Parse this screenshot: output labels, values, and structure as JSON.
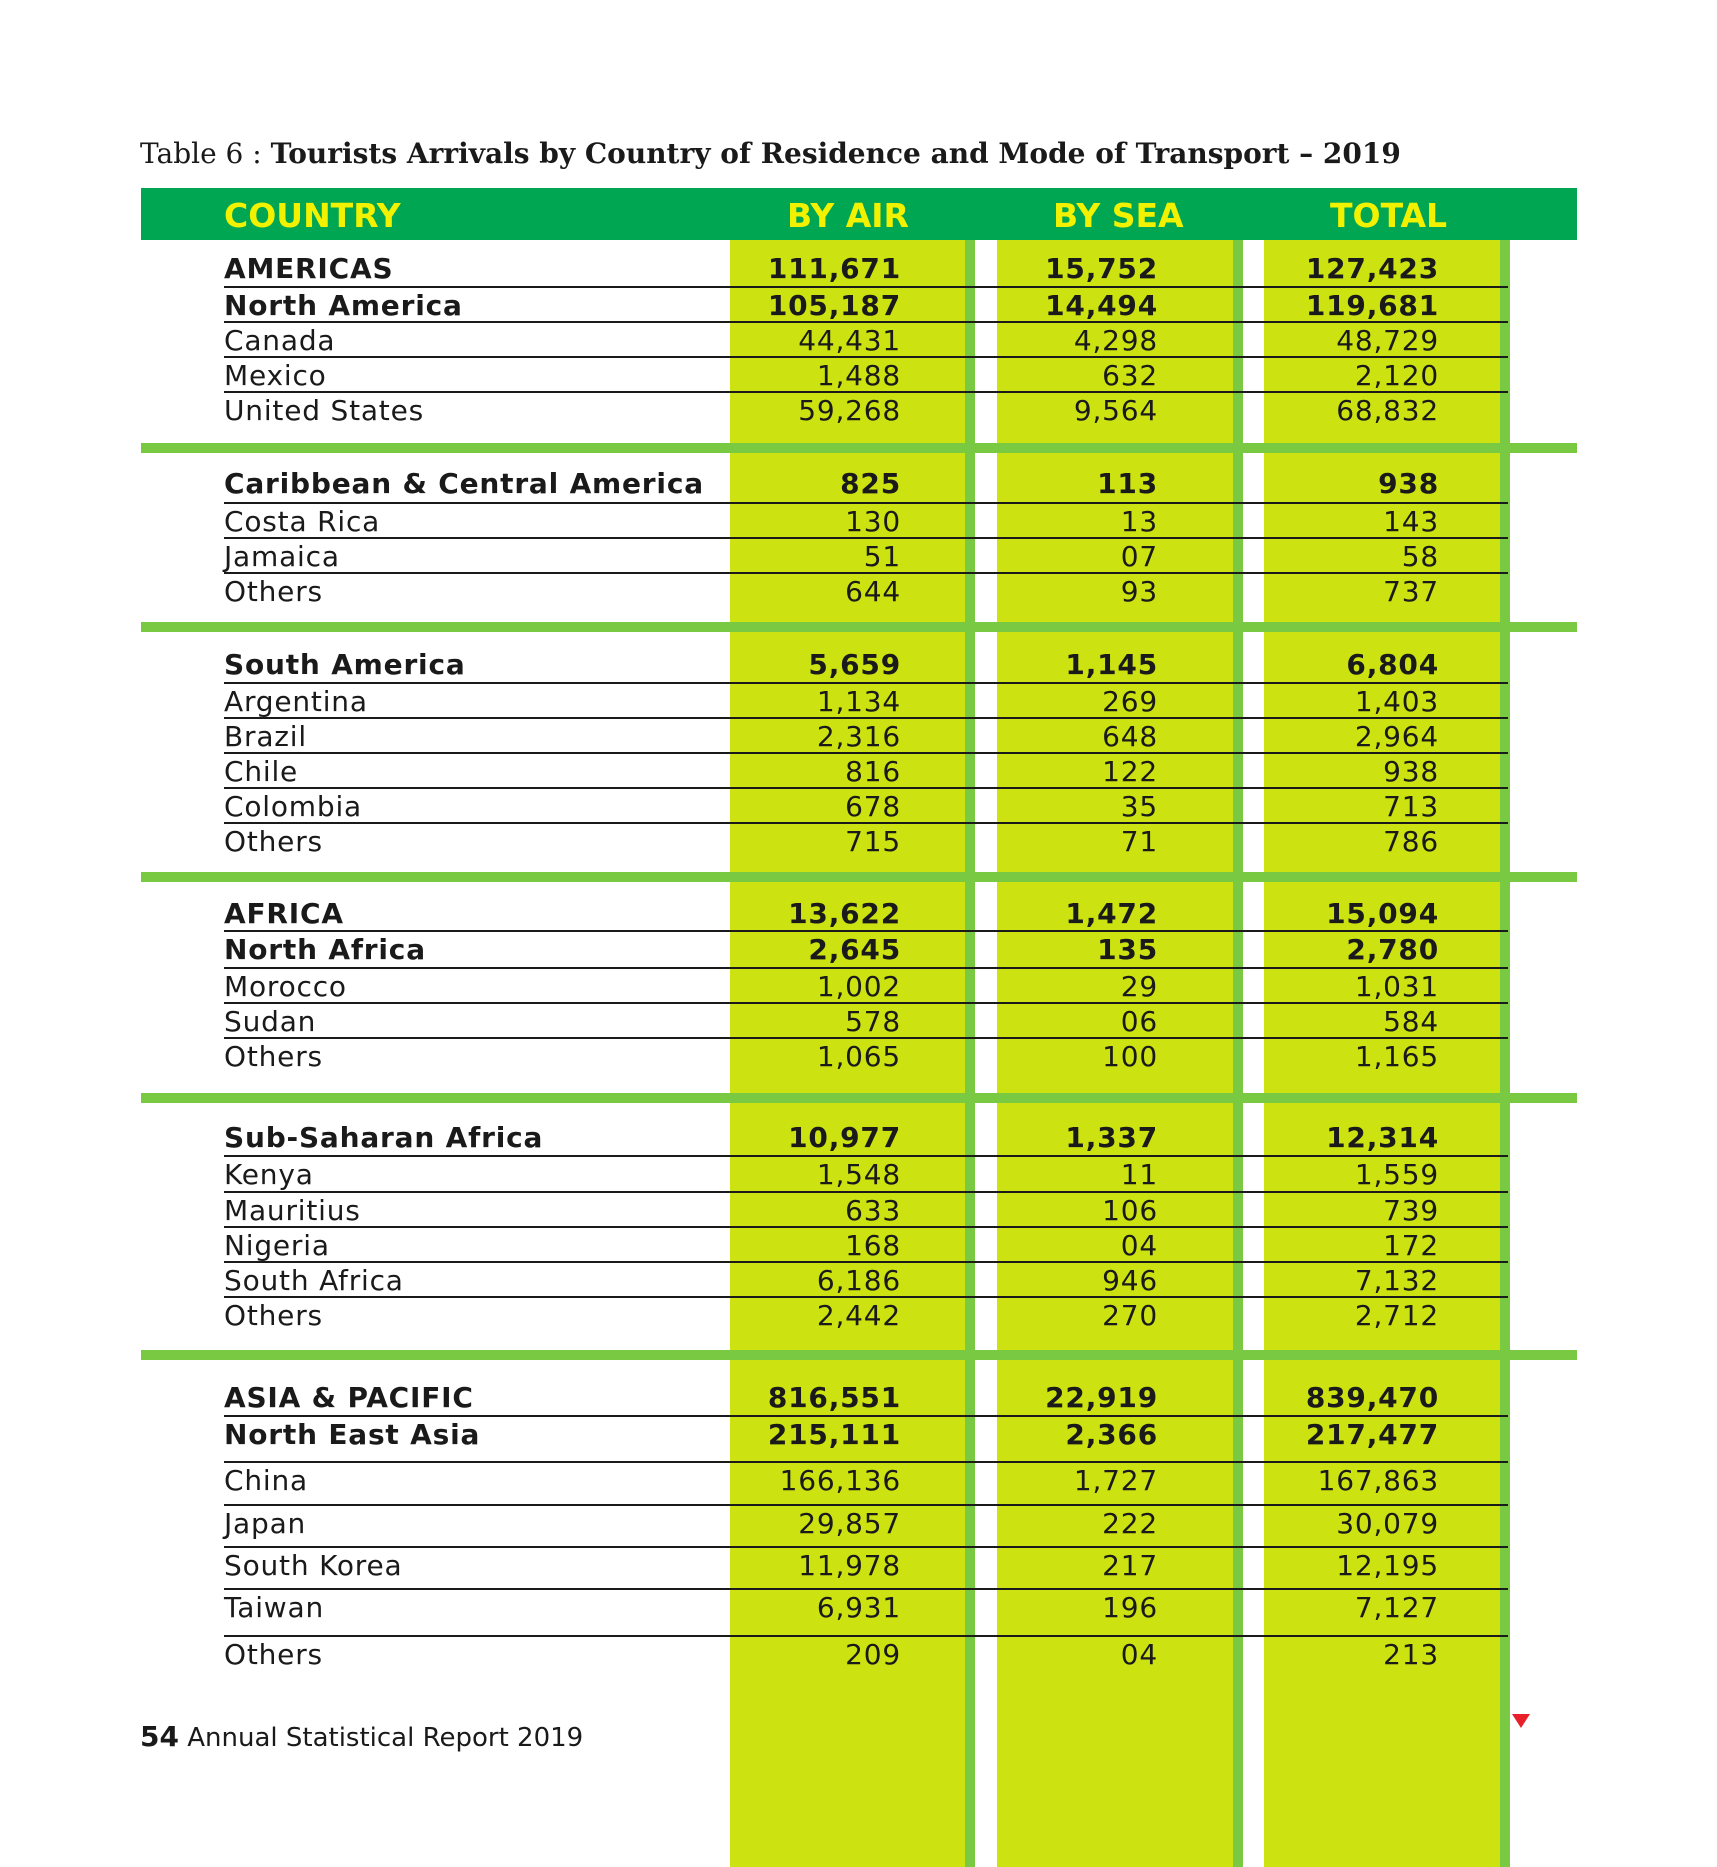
{
  "caption": {
    "label": "Table 6 :",
    "title": "Tourists Arrivals by Country of Residence and Mode of Transport – 2019"
  },
  "table": {
    "headers": [
      "COUNTRY",
      "BY AIR",
      "BY SEA",
      "TOTAL"
    ],
    "groups": [
      {
        "rows": [
          {
            "name": "AMERICAS",
            "air": "111,671",
            "sea": "15,752",
            "total": "127,423",
            "level": "region"
          },
          {
            "name": "North America",
            "air": "105,187",
            "sea": "14,494",
            "total": "119,681",
            "level": "subregion"
          },
          {
            "name": "Canada",
            "air": "44,431",
            "sea": "4,298",
            "total": "48,729",
            "level": "country"
          },
          {
            "name": "Mexico",
            "air": "1,488",
            "sea": "632",
            "total": "2,120",
            "level": "country"
          },
          {
            "name": "United States",
            "air": "59,268",
            "sea": "9,564",
            "total": "68,832",
            "level": "country"
          }
        ]
      },
      {
        "rows": [
          {
            "name": "Caribbean & Central America",
            "air": "825",
            "sea": "113",
            "total": "938",
            "level": "subregion"
          },
          {
            "name": "Costa Rica",
            "air": "130",
            "sea": "13",
            "total": "143",
            "level": "country"
          },
          {
            "name": "Jamaica",
            "air": "51",
            "sea": "07",
            "total": "58",
            "level": "country"
          },
          {
            "name": "Others",
            "air": "644",
            "sea": "93",
            "total": "737",
            "level": "country"
          }
        ]
      },
      {
        "rows": [
          {
            "name": "South America",
            "air": "5,659",
            "sea": "1,145",
            "total": "6,804",
            "level": "subregion"
          },
          {
            "name": "Argentina",
            "air": "1,134",
            "sea": "269",
            "total": "1,403",
            "level": "country"
          },
          {
            "name": "Brazil",
            "air": "2,316",
            "sea": "648",
            "total": "2,964",
            "level": "country"
          },
          {
            "name": "Chile",
            "air": "816",
            "sea": "122",
            "total": "938",
            "level": "country"
          },
          {
            "name": "Colombia",
            "air": "678",
            "sea": "35",
            "total": "713",
            "level": "country"
          },
          {
            "name": "Others",
            "air": "715",
            "sea": "71",
            "total": "786",
            "level": "country"
          }
        ]
      },
      {
        "rows": [
          {
            "name": "AFRICA",
            "air": "13,622",
            "sea": "1,472",
            "total": "15,094",
            "level": "region"
          },
          {
            "name": "North Africa",
            "air": "2,645",
            "sea": "135",
            "total": "2,780",
            "level": "subregion"
          },
          {
            "name": "Morocco",
            "air": "1,002",
            "sea": "29",
            "total": "1,031",
            "level": "country"
          },
          {
            "name": "Sudan",
            "air": "578",
            "sea": "06",
            "total": "584",
            "level": "country"
          },
          {
            "name": "Others",
            "air": "1,065",
            "sea": "100",
            "total": "1,165",
            "level": "country"
          }
        ]
      },
      {
        "rows": [
          {
            "name": "Sub-Saharan Africa",
            "air": "10,977",
            "sea": "1,337",
            "total": "12,314",
            "level": "subregion"
          },
          {
            "name": "Kenya",
            "air": "1,548",
            "sea": "11",
            "total": "1,559",
            "level": "country"
          },
          {
            "name": "Mauritius",
            "air": "633",
            "sea": "106",
            "total": "739",
            "level": "country"
          },
          {
            "name": "Nigeria",
            "air": "168",
            "sea": "04",
            "total": "172",
            "level": "country"
          },
          {
            "name": "South Africa",
            "air": "6,186",
            "sea": "946",
            "total": "7,132",
            "level": "country"
          },
          {
            "name": "Others",
            "air": "2,442",
            "sea": "270",
            "total": "2,712",
            "level": "country"
          }
        ]
      },
      {
        "rows": [
          {
            "name": "ASIA & PACIFIC",
            "air": "816,551",
            "sea": "22,919",
            "total": "839,470",
            "level": "region"
          },
          {
            "name": "North East Asia",
            "air": "215,111",
            "sea": "2,366",
            "total": "217,477",
            "level": "subregion"
          },
          {
            "name": "China",
            "air": "166,136",
            "sea": "1,727",
            "total": "167,863",
            "level": "country"
          },
          {
            "name": "Japan",
            "air": "29,857",
            "sea": "222",
            "total": "30,079",
            "level": "country"
          },
          {
            "name": "South Korea",
            "air": "11,978",
            "sea": "217",
            "total": "12,195",
            "level": "country"
          },
          {
            "name": "Taiwan",
            "air": "6,931",
            "sea": "196",
            "total": "7,127",
            "level": "country"
          },
          {
            "name": "Others",
            "air": "209",
            "sea": "04",
            "total": "213",
            "level": "country"
          }
        ]
      }
    ]
  },
  "footer": {
    "page_number": "54",
    "report_title": "Annual Statistical Report 2019"
  },
  "colors": {
    "header_green": "#00a651",
    "header_text": "#f2f200",
    "column_fill": "#cce211",
    "stripe_green": "#7ac943",
    "marker_red": "#e8202a"
  },
  "icons": {
    "marker": "red-down-triangle-icon"
  }
}
